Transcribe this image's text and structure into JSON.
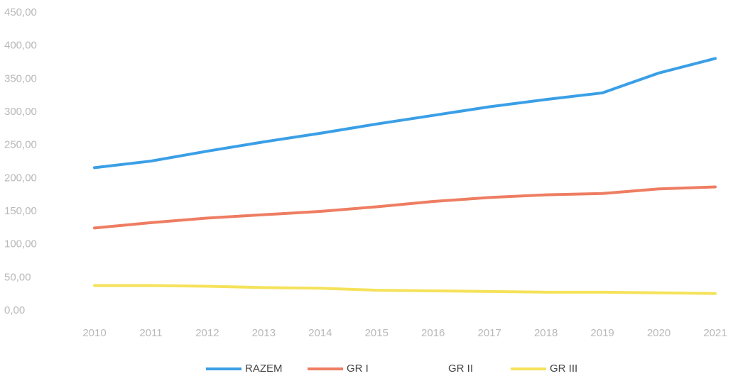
{
  "chart_data": {
    "type": "line",
    "categories": [
      "2010",
      "2011",
      "2012",
      "2013",
      "2014",
      "2015",
      "2016",
      "2017",
      "2018",
      "2019",
      "2020",
      "2021"
    ],
    "series": [
      {
        "name": "RAZEM",
        "color": "#3a9fe6",
        "values": [
          216,
          226,
          241,
          255,
          268,
          282,
          295,
          308,
          319,
          329,
          359,
          381
        ]
      },
      {
        "name": "GR I",
        "color": "#ee7d62",
        "values": [
          125,
          133,
          140,
          145,
          150,
          157,
          165,
          171,
          175,
          177,
          184,
          187
        ]
      },
      {
        "name": "GR II",
        "color": "#ffffff",
        "values": [
          null,
          null,
          null,
          null,
          null,
          null,
          null,
          null,
          null,
          null,
          null,
          null
        ]
      },
      {
        "name": "GR III",
        "color": "#f5e25a",
        "values": [
          38,
          38,
          37,
          35,
          34,
          31,
          30,
          29,
          28,
          28,
          27,
          26
        ]
      }
    ],
    "ylim": [
      0,
      450
    ],
    "yticks": [
      {
        "value": 0,
        "label": "0,00"
      },
      {
        "value": 50,
        "label": "50,00"
      },
      {
        "value": 100,
        "label": "100,00"
      },
      {
        "value": 150,
        "label": "150,00"
      },
      {
        "value": 200,
        "label": "200,00"
      },
      {
        "value": 250,
        "label": "250,00"
      },
      {
        "value": 300,
        "label": "300,00"
      },
      {
        "value": 350,
        "label": "350,00"
      },
      {
        "value": 400,
        "label": "400,00"
      },
      {
        "value": 450,
        "label": "450,00"
      }
    ],
    "grid": false,
    "legend": "bottom"
  }
}
